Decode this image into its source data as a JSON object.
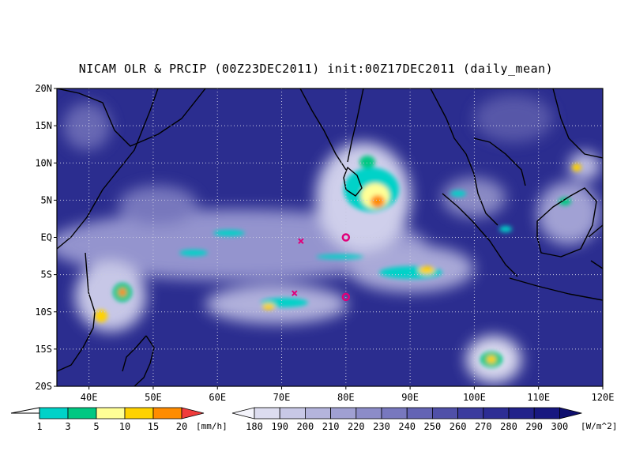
{
  "title": "NICAM OLR & PRCIP (00Z23DEC2011) init:00Z17DEC2011 (daily_mean)",
  "map": {
    "lon_range": [
      35,
      120
    ],
    "lat_range": [
      -20,
      20
    ],
    "x_ticks": [
      "40E",
      "50E",
      "60E",
      "70E",
      "80E",
      "90E",
      "100E",
      "110E",
      "120E"
    ],
    "y_ticks": [
      "20N",
      "15N",
      "10N",
      "5N",
      "EQ",
      "5S",
      "10S",
      "15S",
      "20S"
    ],
    "colors": {
      "ocean_background": "#2b2d8f",
      "cloud": "#e8e8f6",
      "coast": "#000000"
    },
    "markers": [
      {
        "type": "circle",
        "lon": 80,
        "lat": 0,
        "color": "#e0007a"
      },
      {
        "type": "circle",
        "lon": 80,
        "lat": -8,
        "color": "#e0007a"
      },
      {
        "type": "cross",
        "lon": 73,
        "lat": -0.5,
        "color": "#e0007a"
      },
      {
        "type": "cross",
        "lon": 72,
        "lat": -7.5,
        "color": "#e0007a"
      }
    ]
  },
  "precip_legend": {
    "unit": "[mm/h]",
    "labels": [
      "1",
      "3",
      "5",
      "10",
      "15",
      "20"
    ],
    "colors": [
      "#00d2c8",
      "#00c882",
      "#ffff96",
      "#ffd200",
      "#ff8c00",
      "#f03c3c"
    ]
  },
  "olr_legend": {
    "unit": "[W/m^2]",
    "labels": [
      "180",
      "190",
      "200",
      "210",
      "220",
      "230",
      "240",
      "250",
      "260",
      "270",
      "280",
      "290",
      "300"
    ],
    "colors": [
      "#f4f4fb",
      "#dcdcef",
      "#c8c8e6",
      "#b4b4dc",
      "#a0a0d2",
      "#8c8cc8",
      "#7878be",
      "#6464b4",
      "#5050a8",
      "#3c3c9e",
      "#2d2d94",
      "#22228a",
      "#181880",
      "#0e0e6e"
    ]
  }
}
